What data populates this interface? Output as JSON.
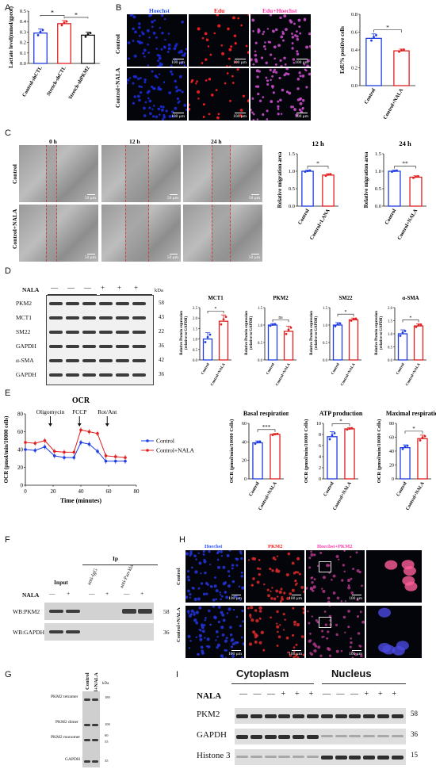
{
  "panels": {
    "A": "A",
    "B": "B",
    "C": "C",
    "D": "D",
    "E": "E",
    "F": "F",
    "G": "G",
    "H": "H",
    "I": "I"
  },
  "panelA": {
    "ylabel": "Lactate level(mmol/gprot)",
    "xlabels": [
      "Control-shCTL",
      "Stretch-shCTL",
      "Stretch-shPKM2"
    ],
    "yticks": [
      "0.0",
      "0.1",
      "0.2",
      "0.3",
      "0.4",
      "0.5"
    ],
    "sig": [
      "*",
      "*"
    ]
  },
  "panelB": {
    "col_titles": [
      "Hoechst",
      "Edu",
      "Edu+Hoechst"
    ],
    "row_labels": [
      "Control",
      "Control+NALA"
    ],
    "scale": "100 μm",
    "chart_ylabel": "EdU% positive cells",
    "chart_yticks": [
      "0.0",
      "0.2",
      "0.4",
      "0.6",
      "0.8"
    ],
    "chart_xlabels": [
      "Control",
      "Control+NALA"
    ],
    "sig": "*"
  },
  "panelC": {
    "col_titles": [
      "0 h",
      "12 h",
      "24 h"
    ],
    "row_labels": [
      "Control",
      "Control+NALA"
    ],
    "scale": "50 μm",
    "chart1_title": "12 h",
    "chart2_title": "24 h",
    "ylabel": "Relative migration area",
    "yticks": [
      "0.0",
      "0.5",
      "1.0",
      "1.5"
    ],
    "chart1_xlabels": [
      "Control",
      "Control+LANA"
    ],
    "chart2_xlabels": [
      "Control",
      "Control+NALA"
    ],
    "sig1": "*",
    "sig2": "**"
  },
  "panelD": {
    "treatment": "NALA",
    "signs": [
      "—",
      "—",
      "—",
      "+",
      "+",
      "+"
    ],
    "kda": "kDa",
    "rows": [
      {
        "label": "PKM2",
        "kda": "58"
      },
      {
        "label": "MCT1",
        "kda": "43"
      },
      {
        "label": "SM22",
        "kda": "22"
      },
      {
        "label": "GAPDH",
        "kda": "36"
      },
      {
        "label": "α-SMA",
        "kda": "42"
      },
      {
        "label": "GAPDH",
        "kda": "36"
      }
    ],
    "charts": [
      {
        "title": "MCT1",
        "sig": "*"
      },
      {
        "title": "PKM2",
        "sig": "ns"
      },
      {
        "title": "SM22",
        "sig": "*"
      },
      {
        "title": "α-SMA",
        "sig": "*"
      }
    ],
    "ylabel1": "Relative Protein expression",
    "ylabel2": "(relative to GAPDH)",
    "xlabels": [
      "Control",
      "Control+NALA"
    ]
  },
  "panelE": {
    "title": "OCR",
    "annotations": [
      "Oligomycin",
      "FCCP",
      "Rot/Ant"
    ],
    "ylabel": "OCR (pmol/min/10000 cells)",
    "xlabel": "Time (minutes)",
    "yticks": [
      "0",
      "20",
      "40",
      "60",
      "80"
    ],
    "xticks": [
      "0",
      "20",
      "40",
      "60",
      "80"
    ],
    "legend": [
      "Control",
      "Control+NALA"
    ],
    "bar_titles": [
      "Basal respiration",
      "ATP production",
      "Maximal respiration"
    ],
    "bar_ylabel": "OCR (pmol/min/10000 Cells)",
    "bar_xlabels": [
      "Control",
      "Control+NALA"
    ],
    "bar_sigs": [
      "***",
      "*",
      "*"
    ]
  },
  "panelF": {
    "ip": "Ip",
    "input": "Input",
    "treatment": "NALA",
    "lanes": [
      "anti-IgG",
      "anti-Pan-kla"
    ],
    "rows": [
      {
        "label": "WB:PKM2",
        "kda": "58"
      },
      {
        "label": "WB:GAPDH",
        "kda": "36"
      }
    ]
  },
  "panelG": {
    "cols": [
      "Control",
      "Control+NALA"
    ],
    "kda": "kDa",
    "labels": [
      "PKM2 tetramer",
      "PKM2 dimer",
      "PKM2 monomer",
      "GAPDH"
    ],
    "markers": [
      "180",
      "100",
      "60",
      "55",
      "35"
    ]
  },
  "panelH": {
    "col_titles": [
      "Hoechst",
      "PKM2",
      "Hoechst+PKM2"
    ],
    "row_labels": [
      "Control",
      "Control+NALA"
    ],
    "scale": "100 μm"
  },
  "panelI": {
    "cytoplasm": "Cytoplasm",
    "nucleus": "Nucleus",
    "treatment": "NALA",
    "signs": [
      "—",
      "—",
      "—",
      "+",
      "+",
      "+",
      "—",
      "—",
      "—",
      "+",
      "+",
      "+"
    ],
    "rows": [
      {
        "label": "PKM2",
        "kda": "58"
      },
      {
        "label": "GAPDH",
        "kda": "36"
      },
      {
        "label": "Histone 3",
        "kda": "15"
      }
    ]
  },
  "chart_data": [
    {
      "type": "bar",
      "panel": "A",
      "categories": [
        "Control-shCTL",
        "Stretch-shCTL",
        "Stretch-shPKM2"
      ],
      "values": [
        0.29,
        0.38,
        0.27
      ],
      "ylim": [
        0,
        0.5
      ],
      "ylabel": "Lactate level(mmol/gprot)",
      "colors": [
        "#1f3de0",
        "#e02020",
        "#111111"
      ]
    },
    {
      "type": "bar",
      "panel": "B",
      "categories": [
        "Control",
        "Control+NALA"
      ],
      "values": [
        0.53,
        0.39
      ],
      "ylim": [
        0,
        0.8
      ],
      "ylabel": "EdU% positive cells"
    },
    {
      "type": "bar",
      "panel": "C-12h",
      "title": "12 h",
      "categories": [
        "Control",
        "Control+LANA"
      ],
      "values": [
        1.0,
        0.89
      ],
      "ylim": [
        0,
        1.5
      ],
      "ylabel": "Relative migration area"
    },
    {
      "type": "bar",
      "panel": "C-24h",
      "title": "24 h",
      "categories": [
        "Control",
        "Control+NALA"
      ],
      "values": [
        1.0,
        0.83
      ],
      "ylim": [
        0,
        1.5
      ],
      "ylabel": "Relative migration area"
    },
    {
      "type": "bar",
      "panel": "D-MCT1",
      "title": "MCT1",
      "categories": [
        "Control",
        "Control+NALA"
      ],
      "values": [
        1.0,
        1.85
      ],
      "ylim": [
        0,
        2.5
      ]
    },
    {
      "type": "bar",
      "panel": "D-PKM2",
      "title": "PKM2",
      "categories": [
        "Control",
        "Control+NALA"
      ],
      "values": [
        1.0,
        0.82
      ],
      "ylim": [
        0,
        1.5
      ]
    },
    {
      "type": "bar",
      "panel": "D-SM22",
      "title": "SM22",
      "categories": [
        "Control",
        "Control+NALA"
      ],
      "values": [
        1.0,
        1.15
      ],
      "ylim": [
        0,
        1.5
      ]
    },
    {
      "type": "bar",
      "panel": "D-aSMA",
      "title": "α-SMA",
      "categories": [
        "Control",
        "Control+NALA"
      ],
      "values": [
        1.0,
        1.3
      ],
      "ylim": [
        0,
        2.0
      ]
    },
    {
      "type": "line",
      "panel": "E-OCR",
      "title": "OCR",
      "xlabel": "Time (minutes)",
      "ylabel": "OCR (pmol/min/10000 cells)",
      "ylim": [
        0,
        80
      ],
      "xlim": [
        0,
        80
      ],
      "x": [
        0,
        7,
        14,
        21,
        28,
        35,
        40,
        46,
        52,
        58,
        65,
        72
      ],
      "series": [
        {
          "name": "Control",
          "values": [
            40,
            39,
            43,
            33,
            31,
            31,
            48,
            46,
            38,
            27,
            27,
            27
          ]
        },
        {
          "name": "Control+NALA",
          "values": [
            48,
            47,
            50,
            38,
            37,
            37,
            62,
            60,
            58,
            33,
            32,
            31
          ]
        }
      ]
    },
    {
      "type": "bar",
      "panel": "E-basal",
      "title": "Basal respiration",
      "categories": [
        "Control",
        "Control+NALA"
      ],
      "values": [
        39,
        48
      ],
      "ylim": [
        0,
        60
      ],
      "yticks": [
        0,
        20,
        40,
        60
      ]
    },
    {
      "type": "bar",
      "panel": "E-ATP",
      "title": "ATP production",
      "categories": [
        "Control",
        "Control+NALA"
      ],
      "values": [
        7.6,
        9.0
      ],
      "ylim": [
        0,
        10
      ],
      "yticks": [
        0,
        2,
        4,
        6,
        8,
        10
      ]
    },
    {
      "type": "bar",
      "panel": "E-max",
      "title": "Maximal respiration",
      "categories": [
        "Control",
        "Control+NALA"
      ],
      "values": [
        45,
        58
      ],
      "ylim": [
        0,
        80
      ],
      "yticks": [
        0,
        20,
        40,
        60,
        80
      ]
    }
  ]
}
